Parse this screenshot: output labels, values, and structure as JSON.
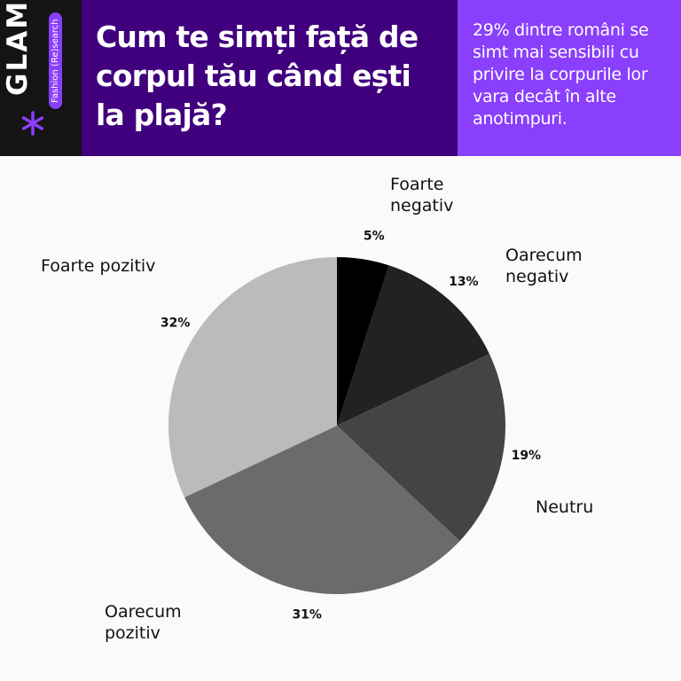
{
  "brand": {
    "name": "GLAMI",
    "tagline": "Fashion (Re)search"
  },
  "chart_data": {
    "type": "pie",
    "title": "Cum te simți față de corpul tău când ești la plajă?",
    "subtitle": "29% dintre români se simt mai sensibili cu privire la corpurile lor vara decât în alte anotimpuri.",
    "categories": [
      "Foarte negativ",
      "Oarecum negativ",
      "Neutru",
      "Oarecum pozitiv",
      "Foarte pozitiv"
    ],
    "values": [
      5,
      13,
      19,
      31,
      32
    ],
    "value_labels": [
      "5%",
      "13%",
      "19%",
      "31%",
      "32%"
    ],
    "colors": [
      "#000000",
      "#222222",
      "#444444",
      "#6b6b6b",
      "#bbbbbb"
    ]
  }
}
